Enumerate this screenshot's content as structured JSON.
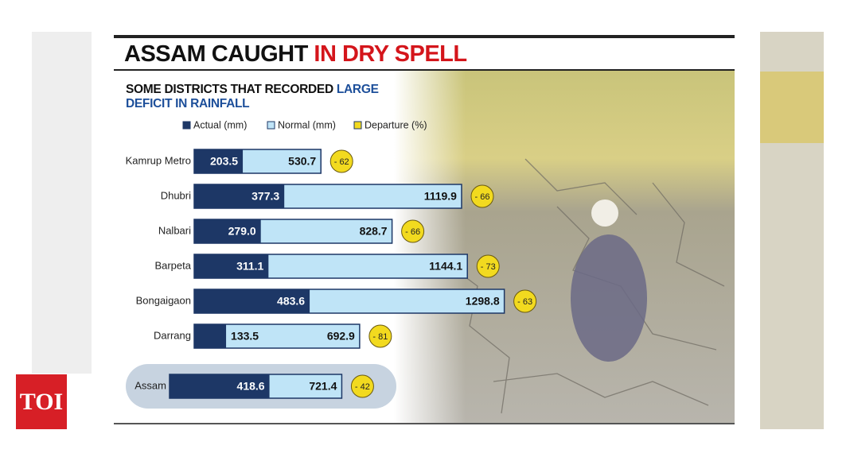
{
  "logo": "TOI",
  "chart_data": {
    "type": "bar",
    "orientation": "horizontal",
    "title": [
      "ASSAM CAUGHT",
      "IN DRY SPELL"
    ],
    "subtitle": [
      "SOME DISTRICTS THAT RECORDED",
      "LARGE DEFICIT IN RAINFALL"
    ],
    "categories": [
      "Kamrup Metro",
      "Dhubri",
      "Nalbari",
      "Barpeta",
      "Bongaigaon",
      "Darrang",
      "Assam"
    ],
    "series": [
      {
        "name": "Actual (mm)",
        "color": "#1d3766",
        "values": [
          203.5,
          377.3,
          279,
          311.1,
          483.6,
          133.5,
          418.6
        ],
        "value_labels": [
          "203.5",
          "377.3",
          "279.0",
          "311.1",
          "483.6",
          "133.5",
          "418.6"
        ]
      },
      {
        "name": "Normal (mm)",
        "color": "#bfe4f7",
        "values": [
          530.7,
          1119.9,
          828.7,
          1144.1,
          1298.8,
          692.9,
          721.4
        ]
      },
      {
        "name": "Departure (%)",
        "color": "#f2da1f",
        "values": [
          -62,
          -66,
          -66,
          -73,
          -63,
          -81,
          -42
        ],
        "value_labels": [
          "- 62",
          "- 66",
          "- 66",
          "- 73",
          "- 63",
          "- 81",
          "- 42"
        ]
      }
    ]
  }
}
